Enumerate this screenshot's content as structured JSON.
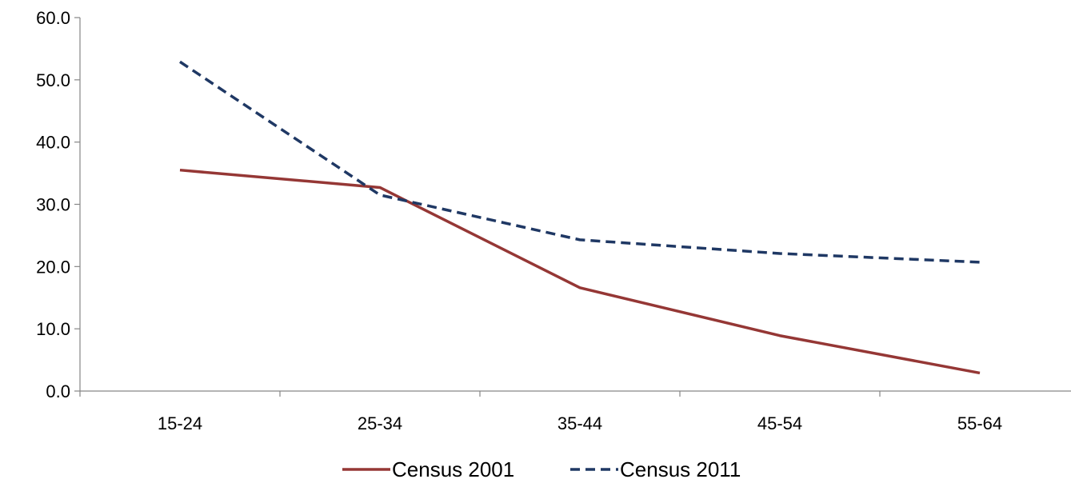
{
  "chart_data": {
    "type": "line",
    "categories": [
      "15-24",
      "25-34",
      "35-44",
      "45-54",
      "55-64"
    ],
    "series": [
      {
        "name": "Census 2001",
        "values": [
          35.5,
          32.7,
          16.6,
          8.9,
          2.9
        ],
        "color": "#953735",
        "style": "solid"
      },
      {
        "name": "Census 2011",
        "values": [
          52.9,
          31.5,
          24.3,
          22.1,
          20.7
        ],
        "color": "#1F3864",
        "style": "dashed"
      }
    ],
    "ylim": [
      0,
      60
    ],
    "yticks": [
      "0.0",
      "10.0",
      "20.0",
      "30.0",
      "40.0",
      "50.0",
      "60.0"
    ],
    "grid": false,
    "legend": "bottom"
  }
}
